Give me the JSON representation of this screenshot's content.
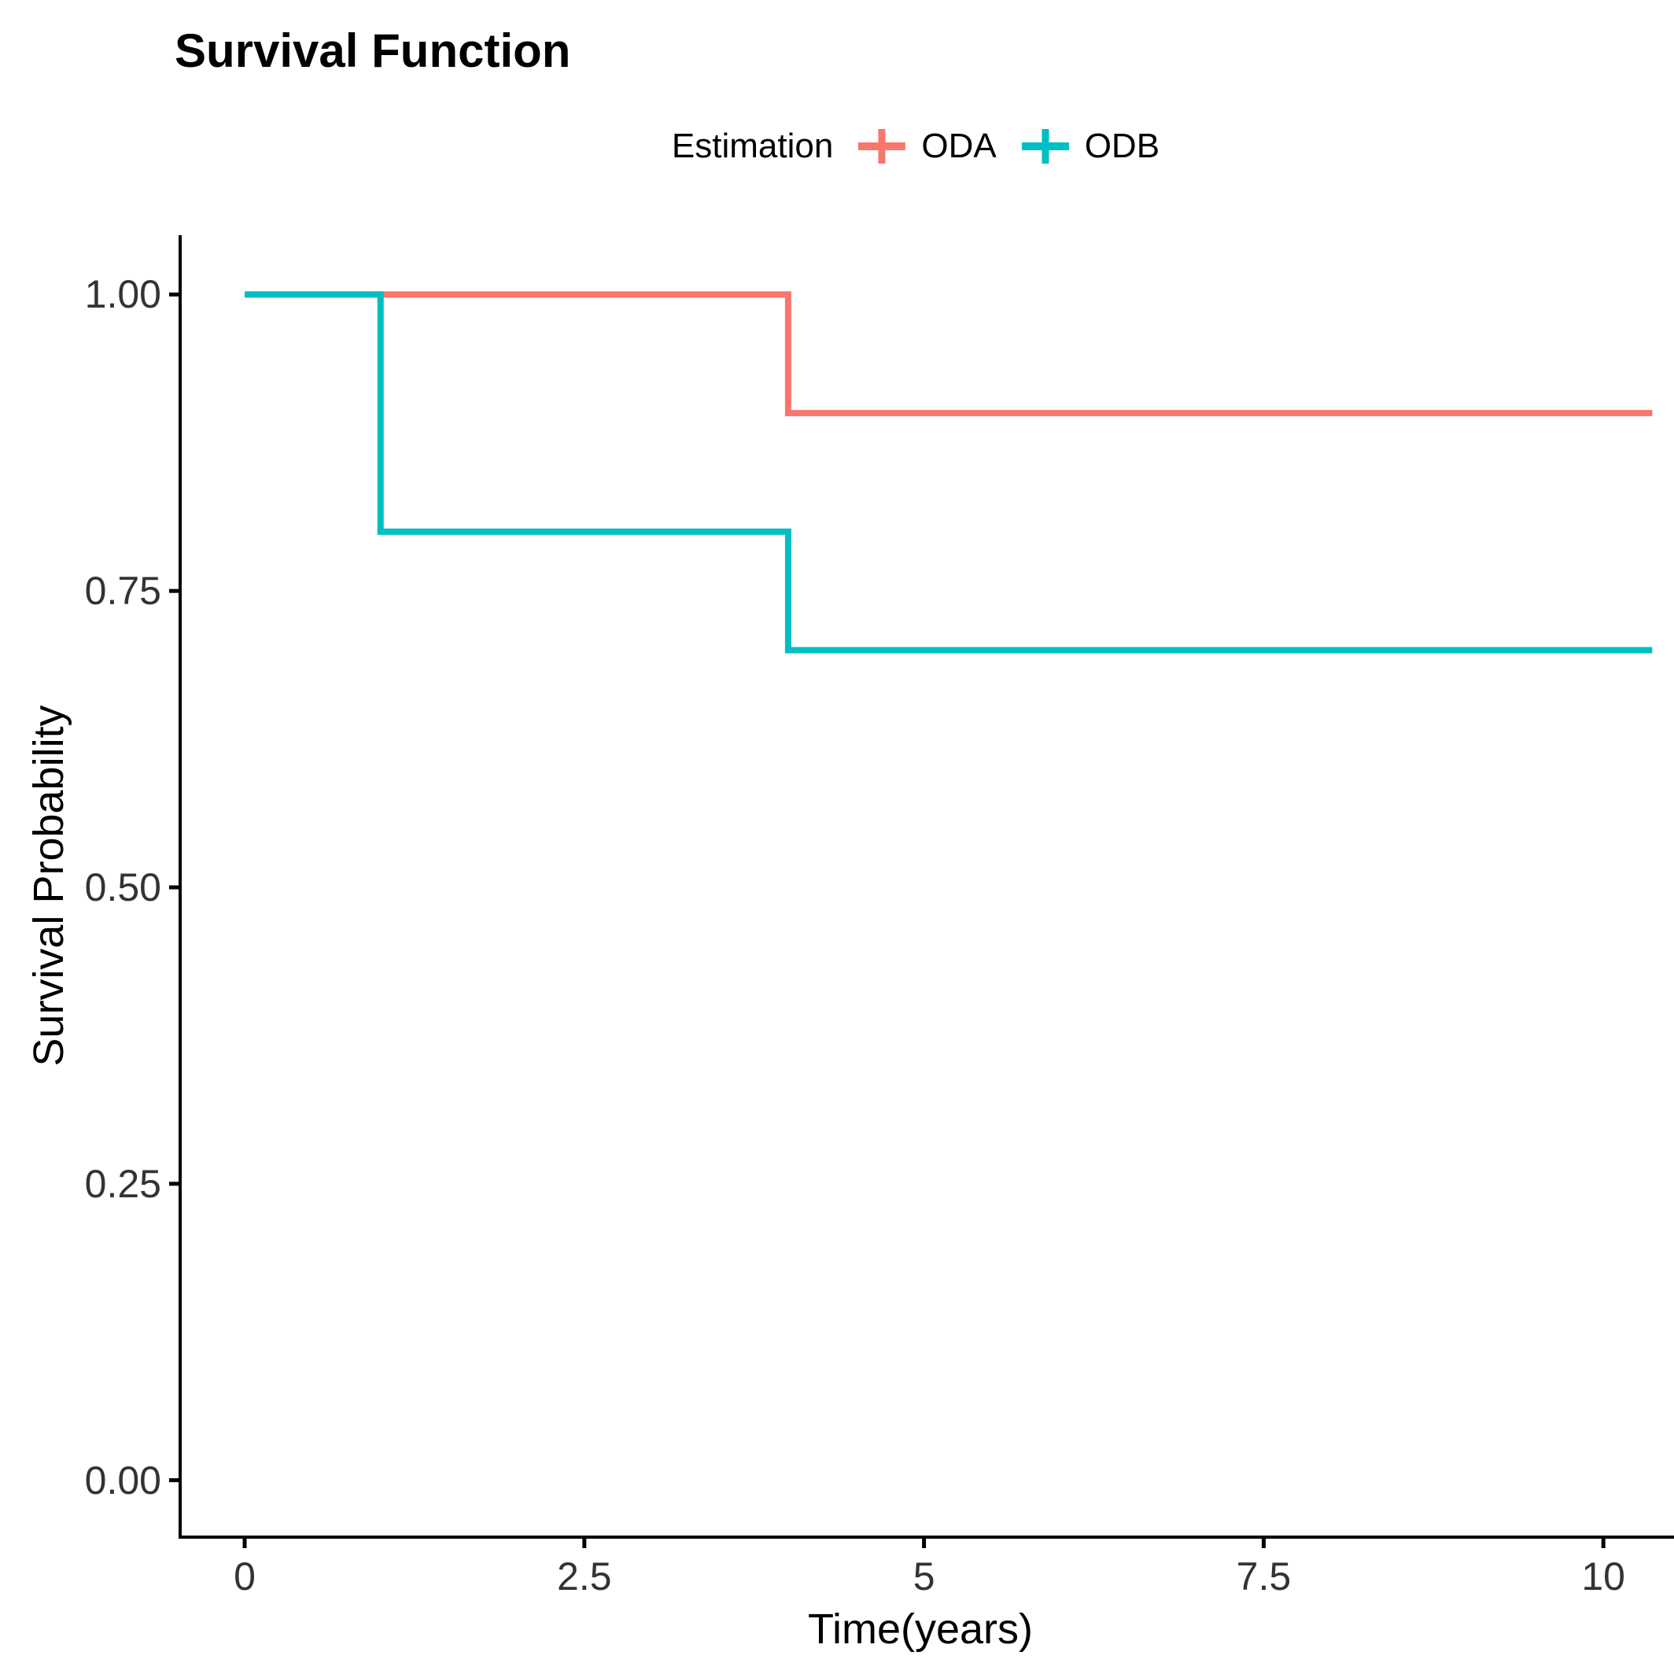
{
  "chart_data": {
    "type": "line",
    "subtype": "kaplan-meier-step",
    "title": "Survival Function",
    "legend_title": "Estimation",
    "legend_position": "top",
    "xlabel": "Time(years)",
    "ylabel": "Survival Probability",
    "grid": false,
    "background": "#ffffff",
    "axis_color": "#000000",
    "tick_label_color": "#333333",
    "xlim": [
      -0.475,
      10.52
    ],
    "ylim": [
      -0.048,
      1.05
    ],
    "x_ticks": [
      {
        "value": 0,
        "label": "0"
      },
      {
        "value": 2.5,
        "label": "2.5"
      },
      {
        "value": 5,
        "label": "5"
      },
      {
        "value": 7.5,
        "label": "7.5"
      },
      {
        "value": 10,
        "label": "10"
      }
    ],
    "y_ticks": [
      {
        "value": 0.0,
        "label": "0.00"
      },
      {
        "value": 0.25,
        "label": "0.25"
      },
      {
        "value": 0.5,
        "label": "0.50"
      },
      {
        "value": 0.75,
        "label": "0.75"
      },
      {
        "value": 1.0,
        "label": "1.00"
      }
    ],
    "series": [
      {
        "name": "ODA",
        "color": "#F8766D",
        "points": [
          [
            0,
            1.0
          ],
          [
            4,
            1.0
          ],
          [
            4,
            0.9
          ],
          [
            10.36,
            0.9
          ]
        ]
      },
      {
        "name": "ODB",
        "color": "#00BFC4",
        "points": [
          [
            0,
            1.0
          ],
          [
            1,
            1.0
          ],
          [
            1,
            0.8
          ],
          [
            4,
            0.8
          ],
          [
            4,
            0.7
          ],
          [
            10.36,
            0.7
          ]
        ]
      }
    ]
  }
}
